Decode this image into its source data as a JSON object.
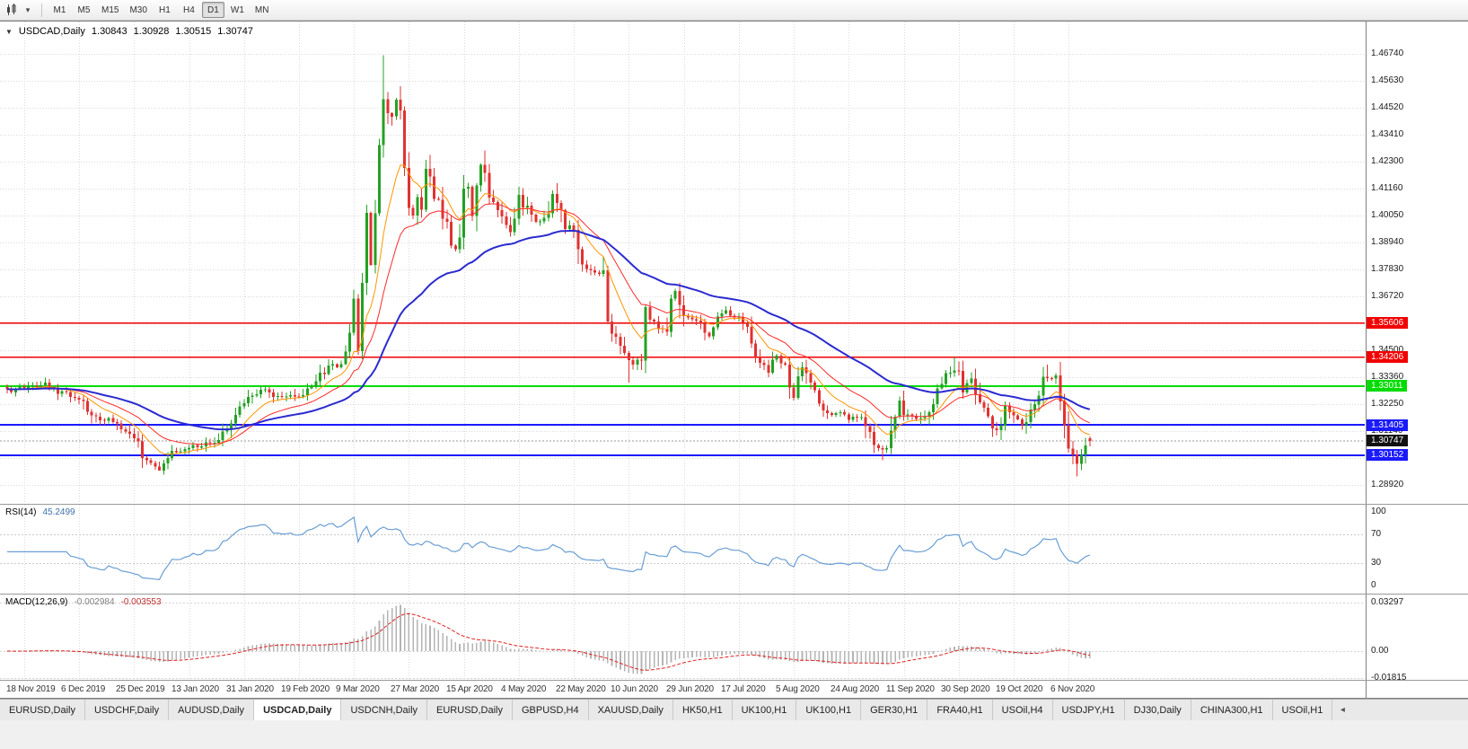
{
  "toolbar": {
    "caret_glyph": "▾",
    "timeframes": [
      {
        "label": "M1",
        "active": false
      },
      {
        "label": "M5",
        "active": false
      },
      {
        "label": "M15",
        "active": false
      },
      {
        "label": "M30",
        "active": false
      },
      {
        "label": "H1",
        "active": false
      },
      {
        "label": "H4",
        "active": false
      },
      {
        "label": "D1",
        "active": true
      },
      {
        "label": "W1",
        "active": false
      },
      {
        "label": "MN",
        "active": false
      }
    ]
  },
  "chart": {
    "collapse_arrow": "▼",
    "title_symbol": "USDCAD,Daily",
    "ohlc": [
      "1.30843",
      "1.30928",
      "1.30515",
      "1.30747"
    ]
  },
  "price_axis": {
    "labels": [
      "1.46740",
      "1.45630",
      "1.44520",
      "1.43410",
      "1.42300",
      "1.41160",
      "1.40050",
      "1.38940",
      "1.37830",
      "1.36720",
      "1.35610",
      "1.34500",
      "1.33360",
      "1.32250",
      "1.31140",
      "1.30030",
      "1.28920"
    ]
  },
  "rsi": {
    "label": "RSI(14)",
    "value": "45.2499",
    "axis_labels": [
      "100",
      "70",
      "30",
      "0"
    ],
    "color": "#6A9ED4"
  },
  "macd": {
    "label": "MACD(12,26,9)",
    "value_main": "-0.002984",
    "value_signal": "-0.003553",
    "axis_labels": [
      "0.03297",
      "0.00",
      "-0.01815"
    ],
    "histogram_color": "#B4B4B4",
    "signal_color": "#E02020"
  },
  "date_axis": {
    "labels": [
      "18 Nov 2019",
      "6 Dec 2019",
      "25 Dec 2019",
      "13 Jan 2020",
      "31 Jan 2020",
      "19 Feb 2020",
      "9 Mar 2020",
      "27 Mar 2020",
      "15 Apr 2020",
      "4 May 2020",
      "22 May 2020",
      "10 Jun 2020",
      "29 Jun 2020",
      "17 Jul 2020",
      "5 Aug 2020",
      "24 Aug 2020",
      "11 Sep 2020",
      "30 Sep 2020",
      "19 Oct 2020",
      "6 Nov 2020"
    ]
  },
  "tabs": {
    "scroll_icon": "◂",
    "items": [
      {
        "label": "EURUSD,Daily",
        "active": false
      },
      {
        "label": "USDCHF,Daily",
        "active": false
      },
      {
        "label": "AUDUSD,Daily",
        "active": false
      },
      {
        "label": "USDCAD,Daily",
        "active": true
      },
      {
        "label": "USDCNH,Daily",
        "active": false
      },
      {
        "label": "EURUSD,Daily",
        "active": false
      },
      {
        "label": "GBPUSD,H4",
        "active": false
      },
      {
        "label": "XAUUSD,Daily",
        "active": false
      },
      {
        "label": "HK50,H1",
        "active": false
      },
      {
        "label": "UK100,H1",
        "active": false
      },
      {
        "label": "UK100,H1",
        "active": false
      },
      {
        "label": "GER30,H1",
        "active": false
      },
      {
        "label": "FRA40,H1",
        "active": false
      },
      {
        "label": "USOil,H4",
        "active": false
      },
      {
        "label": "USDJPY,H1",
        "active": false
      },
      {
        "label": "DJ30,Daily",
        "active": false
      },
      {
        "label": "CHINA300,H1",
        "active": false
      },
      {
        "label": "USOil,H1",
        "active": false
      }
    ]
  },
  "chart_data": {
    "type": "candlestick",
    "symbol": "USDCAD",
    "period": "Daily",
    "last_candle": {
      "open": 1.30843,
      "high": 1.30928,
      "low": 1.30515,
      "close": 1.30747
    },
    "visible_price_range": [
      1.2892,
      1.4674
    ],
    "candle_count": 257,
    "colors": {
      "up": "#23A123",
      "down": "#E03232"
    },
    "moving_averages": [
      {
        "period": 10,
        "color": "#FF9500",
        "width": 1
      },
      {
        "period": 21,
        "color": "#FF2A2A",
        "width": 1
      },
      {
        "period": 50,
        "color": "#2B2BD0",
        "width": 2
      }
    ],
    "levels": [
      {
        "price": 1.35606,
        "label": "1.35606",
        "color": "#F20000",
        "width": 1.5
      },
      {
        "price": 1.34206,
        "label": "1.34206",
        "color": "#F20000",
        "width": 1.5
      },
      {
        "price": 1.33011,
        "label": "1.33011",
        "color": "#00DC00",
        "width": 2
      },
      {
        "price": 1.31405,
        "label": "1.31405",
        "color": "#1A1AFF",
        "width": 2
      },
      {
        "price": 1.30152,
        "label": "1.30152",
        "color": "#1A1AFF",
        "width": 2
      }
    ],
    "current_price": {
      "price": 1.30747,
      "label": "1.30747",
      "color": "#111111"
    },
    "rsi_levels": [
      70,
      30
    ],
    "price_path": [
      [
        0,
        1.328
      ],
      [
        5,
        1.33
      ],
      [
        9,
        1.331
      ],
      [
        13,
        1.327
      ],
      [
        17,
        1.3255
      ],
      [
        21,
        1.317
      ],
      [
        25,
        1.316
      ],
      [
        28,
        1.312
      ],
      [
        30,
        1.309
      ],
      [
        33,
        1.299
      ],
      [
        36,
        1.296
      ],
      [
        39,
        1.302
      ],
      [
        43,
        1.3045
      ],
      [
        47,
        1.306
      ],
      [
        50,
        1.308
      ],
      [
        53,
        1.315
      ],
      [
        56,
        1.323
      ],
      [
        60,
        1.329
      ],
      [
        64,
        1.3255
      ],
      [
        67,
        1.327
      ],
      [
        69,
        1.325
      ],
      [
        72,
        1.33
      ],
      [
        75,
        1.336
      ],
      [
        77,
        1.34
      ],
      [
        79,
        1.338
      ],
      [
        80,
        1.342
      ],
      [
        81,
        1.354
      ],
      [
        82,
        1.369
      ],
      [
        83,
        1.3455
      ],
      [
        84,
        1.372
      ],
      [
        85,
        1.3995
      ],
      [
        86,
        1.38
      ],
      [
        87,
        1.402
      ],
      [
        88,
        1.427
      ],
      [
        89,
        1.45
      ],
      [
        90,
        1.444
      ],
      [
        91,
        1.443
      ],
      [
        92,
        1.449
      ],
      [
        93,
        1.444
      ],
      [
        94,
        1.42
      ],
      [
        95,
        1.405
      ],
      [
        96,
        1.401
      ],
      [
        97,
        1.409
      ],
      [
        98,
        1.406
      ],
      [
        99,
        1.421
      ],
      [
        100,
        1.414
      ],
      [
        101,
        1.409
      ],
      [
        103,
        1.401
      ],
      [
        106,
        1.386
      ],
      [
        107,
        1.389
      ],
      [
        108,
        1.409
      ],
      [
        109,
        1.412
      ],
      [
        110,
        1.4
      ],
      [
        112,
        1.4215
      ],
      [
        113,
        1.416
      ],
      [
        114,
        1.41
      ],
      [
        117,
        1.401
      ],
      [
        119,
        1.394
      ],
      [
        121,
        1.409
      ],
      [
        123,
        1.403
      ],
      [
        125,
        1.398
      ],
      [
        127,
        1.398
      ],
      [
        129,
        1.41
      ],
      [
        130,
        1.406
      ],
      [
        132,
        1.396
      ],
      [
        134,
        1.395
      ],
      [
        136,
        1.379
      ],
      [
        139,
        1.377
      ],
      [
        141,
        1.378
      ],
      [
        142,
        1.357
      ],
      [
        143,
        1.352
      ],
      [
        144,
        1.35
      ],
      [
        146,
        1.342
      ],
      [
        148,
        1.339
      ],
      [
        150,
        1.341
      ],
      [
        151,
        1.362
      ],
      [
        152,
        1.359
      ],
      [
        154,
        1.355
      ],
      [
        156,
        1.353
      ],
      [
        157,
        1.363
      ],
      [
        158,
        1.369
      ],
      [
        160,
        1.358
      ],
      [
        163,
        1.357
      ],
      [
        166,
        1.351
      ],
      [
        168,
        1.359
      ],
      [
        170,
        1.361
      ],
      [
        173,
        1.358
      ],
      [
        175,
        1.353
      ],
      [
        177,
        1.341
      ],
      [
        180,
        1.336
      ],
      [
        182,
        1.342
      ],
      [
        184,
        1.338
      ],
      [
        186,
        1.326
      ],
      [
        188,
        1.339
      ],
      [
        190,
        1.331
      ],
      [
        192,
        1.322
      ],
      [
        195,
        1.319
      ],
      [
        197,
        1.32
      ],
      [
        199,
        1.317
      ],
      [
        202,
        1.318
      ],
      [
        204,
        1.309
      ],
      [
        206,
        1.304
      ],
      [
        208,
        1.303
      ],
      [
        209,
        1.313
      ],
      [
        211,
        1.323
      ],
      [
        213,
        1.317
      ],
      [
        216,
        1.316
      ],
      [
        218,
        1.32
      ],
      [
        221,
        1.333
      ],
      [
        223,
        1.336
      ],
      [
        225,
        1.338
      ],
      [
        226,
        1.329
      ],
      [
        228,
        1.332
      ],
      [
        231,
        1.319
      ],
      [
        234,
        1.312
      ],
      [
        236,
        1.321
      ],
      [
        238,
        1.318
      ],
      [
        240,
        1.314
      ],
      [
        243,
        1.321
      ],
      [
        245,
        1.332
      ],
      [
        247,
        1.333
      ],
      [
        248,
        1.332
      ],
      [
        249,
        1.322
      ],
      [
        250,
        1.314
      ],
      [
        251,
        1.306
      ],
      [
        253,
        1.298
      ],
      [
        254,
        1.302
      ],
      [
        255,
        1.305
      ],
      [
        256,
        1.30747
      ]
    ],
    "overrides": [
      {
        "i": 36,
        "l": 1.2952
      },
      {
        "i": 89,
        "h": 1.4669
      },
      {
        "i": 147,
        "l": 1.3315
      },
      {
        "i": 207,
        "l": 1.2994
      },
      {
        "i": 224,
        "h": 1.3419
      },
      {
        "i": 246,
        "h": 1.3389
      },
      {
        "i": 253,
        "l": 1.2928
      },
      {
        "i": 256,
        "o": 1.30843,
        "h": 1.30928,
        "l": 1.30515,
        "c": 1.30747
      }
    ]
  }
}
